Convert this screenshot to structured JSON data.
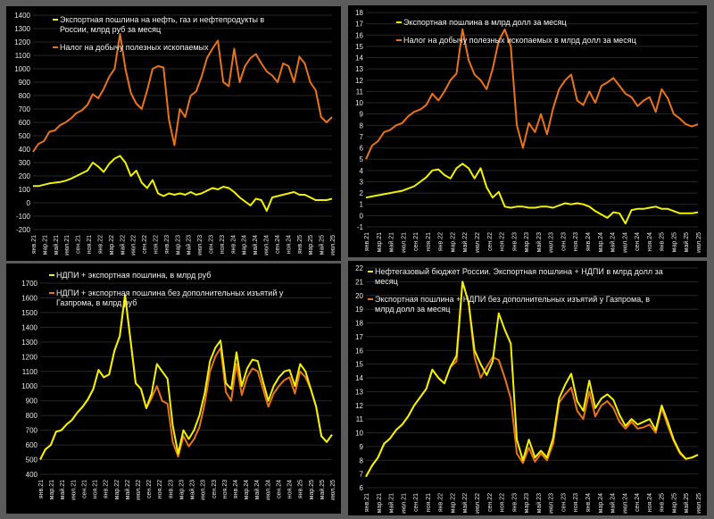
{
  "colors": {
    "yellow": "#f2f200",
    "orange": "#e8731c",
    "grid": "#262626"
  },
  "x_labels": [
    "янв.21",
    "мар.21",
    "май.21",
    "июл.21",
    "сен.21",
    "ноя.21",
    "янв.22",
    "мар.22",
    "май.22",
    "июл.22",
    "сен.22",
    "ноя.22",
    "янв.23",
    "мар.23",
    "май.23",
    "июл.23",
    "сен.23",
    "ноя.23",
    "янв.24",
    "мар.24",
    "май.24",
    "июл.24",
    "сен.24",
    "ноя.24",
    "янв.25",
    "мар.25",
    "май.25",
    "июл.25"
  ],
  "chart_data": [
    {
      "type": "line",
      "legend": [
        "Экспортная пошлина на нефть, газ и нефтепродукты в России, млрд руб за месяц",
        "Налог на добычу полезных ископаемых"
      ],
      "ylim": [
        -200,
        1400
      ],
      "y_ticks": [
        "-200",
        "-100",
        "0",
        "100",
        "200",
        "300",
        "400",
        "500",
        "600",
        "700",
        "800",
        "900",
        "1000",
        "1100",
        "1200",
        "1300",
        "1400"
      ],
      "series": [
        {
          "name": "Экспортная пошлина на нефть, газ и нефтепродукты в России, млрд руб за месяц",
          "color": "yellow",
          "values": [
            125,
            125,
            135,
            145,
            150,
            155,
            165,
            180,
            200,
            220,
            240,
            300,
            270,
            230,
            290,
            330,
            350,
            300,
            200,
            240,
            150,
            110,
            170,
            70,
            50,
            70,
            60,
            70,
            60,
            80,
            60,
            70,
            90,
            110,
            100,
            120,
            110,
            80,
            40,
            10,
            -20,
            30,
            20,
            -60,
            40,
            50,
            60,
            70,
            80,
            60,
            60,
            40,
            20,
            20,
            20,
            30
          ]
        },
        {
          "name": "Налог на добычу полезных ископаемых",
          "color": "orange",
          "values": [
            380,
            440,
            460,
            530,
            540,
            580,
            600,
            630,
            670,
            690,
            730,
            810,
            780,
            850,
            940,
            1000,
            1260,
            1000,
            820,
            740,
            700,
            840,
            1000,
            1020,
            1010,
            620,
            430,
            700,
            640,
            800,
            830,
            940,
            1080,
            1150,
            1210,
            900,
            870,
            1150,
            900,
            1020,
            1080,
            1110,
            1040,
            980,
            950,
            900,
            1040,
            1020,
            900,
            1090,
            1040,
            900,
            840,
            640,
            600,
            640
          ]
        }
      ]
    },
    {
      "type": "line",
      "legend": [
        "Экспортная пошлина в млрд долл за месяц",
        "Налог на добычу полезных ископаемых в млрд долл за месяц"
      ],
      "ylim": [
        -1,
        18
      ],
      "y_ticks": [
        "-1",
        "0",
        "1",
        "2",
        "3",
        "4",
        "5",
        "6",
        "7",
        "8",
        "9",
        "10",
        "11",
        "12",
        "13",
        "14",
        "15",
        "16",
        "17",
        "18"
      ],
      "series": [
        {
          "name": "Экспортная пошлина в млрд долл за месяц",
          "color": "yellow",
          "values": [
            1.6,
            1.7,
            1.8,
            1.9,
            2.0,
            2.1,
            2.2,
            2.4,
            2.6,
            3.0,
            3.4,
            4.0,
            4.1,
            3.6,
            3.3,
            4.2,
            4.6,
            4.2,
            3.3,
            4.2,
            2.5,
            1.6,
            2.1,
            0.8,
            0.7,
            0.8,
            0.8,
            0.7,
            0.7,
            0.8,
            0.8,
            0.7,
            0.9,
            1.1,
            1.0,
            1.1,
            1.0,
            0.8,
            0.4,
            0.1,
            -0.2,
            0.3,
            0.2,
            -0.7,
            0.5,
            0.6,
            0.6,
            0.7,
            0.8,
            0.6,
            0.6,
            0.4,
            0.2,
            0.2,
            0.2,
            0.3
          ]
        },
        {
          "name": "Налог на добычу полезных ископаемых в млрд долл за месяц",
          "color": "orange",
          "values": [
            5.0,
            6.2,
            6.6,
            7.4,
            7.6,
            8.0,
            8.2,
            8.8,
            9.2,
            9.4,
            9.8,
            10.8,
            10.2,
            11.0,
            12.0,
            12.6,
            16.5,
            13.8,
            12.5,
            12.0,
            11.2,
            13.0,
            15.5,
            16.5,
            15.0,
            8.0,
            6.0,
            8.2,
            7.4,
            9.0,
            7.2,
            9.5,
            11.2,
            12.0,
            12.5,
            10.2,
            9.8,
            11.0,
            10.0,
            11.5,
            11.8,
            12.2,
            11.5,
            10.8,
            10.5,
            9.7,
            10.2,
            10.5,
            9.2,
            11.2,
            10.4,
            9.0,
            8.6,
            8.1,
            7.9,
            8.1
          ]
        }
      ]
    },
    {
      "type": "line",
      "legend": [
        "НДПИ + экспортная пошлина, в млрд руб",
        "НДПИ + экспортная пошлина без дополнительных изъятий у Газпрома, в млрд руб"
      ],
      "ylim": [
        400,
        1700
      ],
      "y_ticks": [
        "400",
        "500",
        "600",
        "700",
        "800",
        "900",
        "1000",
        "1100",
        "1200",
        "1300",
        "1400",
        "1500",
        "1600",
        "1700"
      ],
      "series": [
        {
          "name": "НДПИ + экспортная пошлина, в млрд руб",
          "color": "yellow",
          "values": [
            500,
            570,
            600,
            690,
            700,
            740,
            770,
            820,
            860,
            910,
            980,
            1110,
            1060,
            1080,
            1240,
            1340,
            1620,
            1320,
            1020,
            980,
            850,
            950,
            1150,
            1100,
            1050,
            730,
            540,
            700,
            640,
            700,
            800,
            950,
            1170,
            1260,
            1310,
            1020,
            980,
            1230,
            1000,
            1120,
            1180,
            1170,
            1030,
            900,
            1000,
            1060,
            1100,
            1110,
            1000,
            1150,
            1100,
            980,
            860,
            660,
            620,
            670
          ]
        },
        {
          "name": "НДПИ + экспортная пошлина без дополнительных изъятий у Газпрома, в млрд руб",
          "color": "orange",
          "values": [
            500,
            570,
            600,
            690,
            700,
            740,
            770,
            820,
            860,
            910,
            980,
            1110,
            1060,
            1080,
            1240,
            1340,
            1620,
            1320,
            1020,
            980,
            850,
            920,
            1000,
            900,
            880,
            620,
            520,
            660,
            590,
            640,
            720,
            880,
            1100,
            1200,
            1260,
            960,
            900,
            1150,
            940,
            1060,
            1120,
            1100,
            980,
            860,
            950,
            1000,
            1040,
            1060,
            950,
            1100,
            1060,
            980,
            860,
            660,
            620,
            670
          ]
        }
      ]
    },
    {
      "type": "line",
      "legend": [
        "Нефтегазовый бюджет России. Экспортная пошлина + НДПИ в млрд долл за месяц",
        "Экспортная пошлина + НДПИ без дополнительных изъятий у Газпрома, в млрд долл за месяц"
      ],
      "ylim": [
        6,
        22
      ],
      "y_ticks": [
        "6",
        "7",
        "8",
        "9",
        "10",
        "11",
        "12",
        "13",
        "14",
        "15",
        "16",
        "17",
        "18",
        "19",
        "20",
        "21",
        "22"
      ],
      "series": [
        {
          "name": "Нефтегазовый бюджет России. Экспортная пошлина + НДПИ в млрд долл за месяц",
          "color": "yellow",
          "values": [
            6.8,
            7.6,
            8.2,
            9.2,
            9.6,
            10.2,
            10.6,
            11.2,
            12.0,
            12.6,
            13.2,
            14.6,
            14.0,
            13.6,
            14.8,
            15.6,
            21.0,
            19.5,
            16.0,
            15.0,
            14.2,
            15.2,
            18.7,
            17.5,
            16.5,
            9.5,
            8.0,
            9.5,
            8.2,
            8.7,
            8.2,
            9.6,
            12.5,
            13.5,
            14.3,
            12.3,
            11.6,
            13.8,
            11.8,
            12.5,
            12.8,
            12.4,
            11.3,
            10.5,
            11.0,
            10.6,
            10.8,
            11.0,
            10.2,
            12.0,
            10.8,
            9.5,
            8.6,
            8.1,
            8.2,
            8.4
          ]
        },
        {
          "name": "Экспортная пошлина + НДПИ без дополнительных изъятий у Газпрома, в млрд долл за месяц",
          "color": "orange",
          "values": [
            6.8,
            7.6,
            8.2,
            9.2,
            9.6,
            10.2,
            10.6,
            11.2,
            12.0,
            12.6,
            13.2,
            14.6,
            14.0,
            13.6,
            14.8,
            15.2,
            21.0,
            19.5,
            15.5,
            14.0,
            14.8,
            15.5,
            15.3,
            14.0,
            12.5,
            8.5,
            7.8,
            8.9,
            7.9,
            8.5,
            8.0,
            9.2,
            12.2,
            12.8,
            13.3,
            11.6,
            11.0,
            13.0,
            11.2,
            12.0,
            12.3,
            11.8,
            10.8,
            10.3,
            10.8,
            10.3,
            10.4,
            10.6,
            10.0,
            11.8,
            10.5,
            9.4,
            8.5,
            8.1,
            8.2,
            8.4
          ]
        }
      ]
    }
  ]
}
